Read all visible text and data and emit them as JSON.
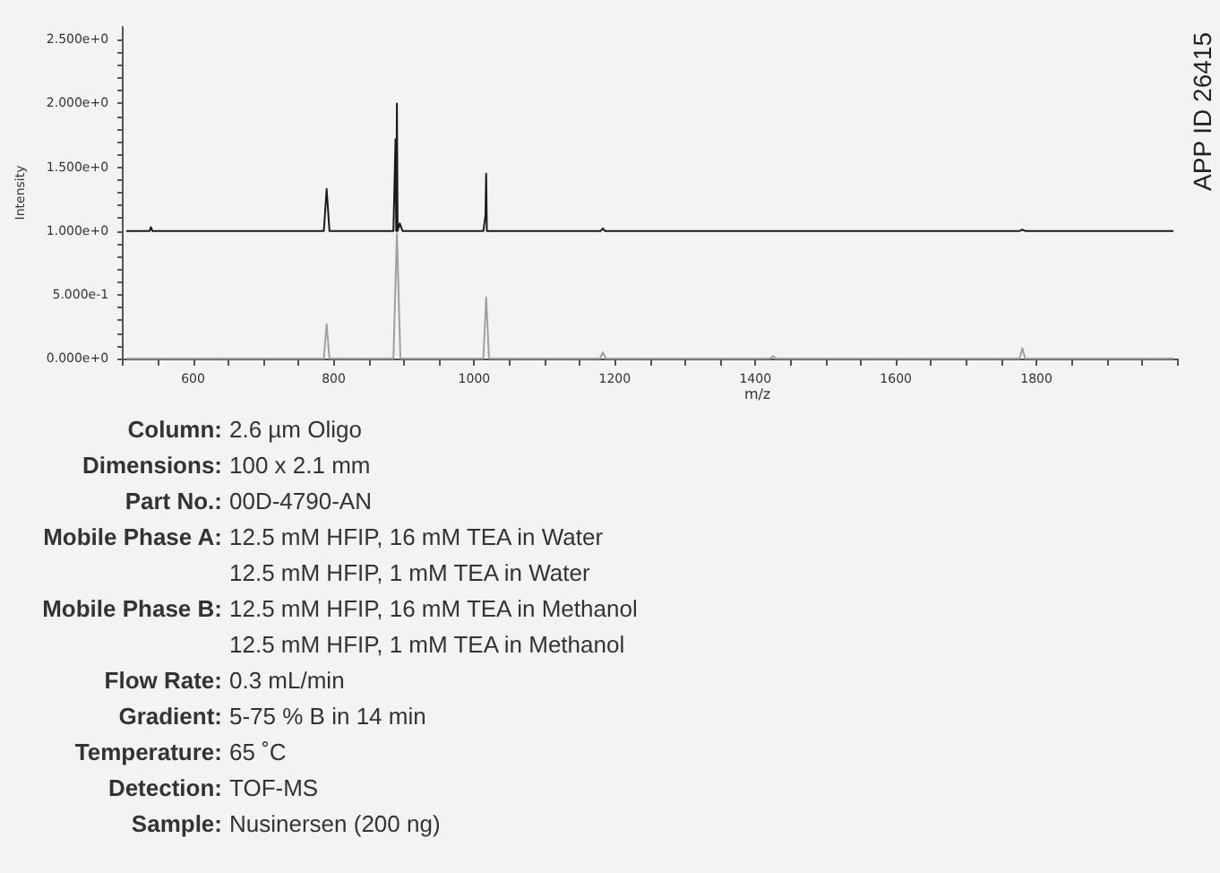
{
  "chart_data": {
    "type": "line",
    "xlabel": "m/z",
    "ylabel": "Intensity",
    "marker": "none",
    "grid": false,
    "xlim": [
      500,
      2000
    ],
    "ylim": [
      0,
      2.6
    ],
    "xticks": [
      {
        "value": 500,
        "label": null
      },
      {
        "value": 550,
        "label": null
      },
      600,
      {
        "value": 650,
        "label": null
      },
      {
        "value": 700,
        "label": null
      },
      {
        "value": 750,
        "label": null
      },
      800,
      {
        "value": 850,
        "label": null
      },
      {
        "value": 900,
        "label": null
      },
      {
        "value": 950,
        "label": null
      },
      1000,
      {
        "value": 1050,
        "label": null
      },
      {
        "value": 1100,
        "label": null
      },
      {
        "value": 1150,
        "label": null
      },
      1200,
      {
        "value": 1250,
        "label": null
      },
      {
        "value": 1300,
        "label": null
      },
      {
        "value": 1350,
        "label": null
      },
      1400,
      {
        "value": 1450,
        "label": null
      },
      {
        "value": 1500,
        "label": null
      },
      {
        "value": 1550,
        "label": null
      },
      1600,
      {
        "value": 1650,
        "label": null
      },
      {
        "value": 1700,
        "label": null
      },
      {
        "value": 1750,
        "label": null
      },
      1800,
      {
        "value": 1850,
        "label": null
      },
      {
        "value": 1900,
        "label": null
      },
      {
        "value": 1950,
        "label": null
      },
      {
        "value": 2000,
        "label": null
      }
    ],
    "yticks": [
      {
        "value": 0,
        "label": "0.000e+0"
      },
      {
        "value": 0.1,
        "label": null
      },
      {
        "value": 0.2,
        "label": null
      },
      {
        "value": 0.3,
        "label": null
      },
      {
        "value": 0.4,
        "label": null
      },
      {
        "value": 0.5,
        "label": "5.000e-1"
      },
      {
        "value": 0.6,
        "label": null
      },
      {
        "value": 0.7,
        "label": null
      },
      {
        "value": 0.8,
        "label": null
      },
      {
        "value": 0.9,
        "label": null
      },
      {
        "value": 1.0,
        "label": "1.000e+0"
      },
      {
        "value": 1.1,
        "label": null
      },
      {
        "value": 1.2,
        "label": null
      },
      {
        "value": 1.3,
        "label": null
      },
      {
        "value": 1.4,
        "label": null
      },
      {
        "value": 1.5,
        "label": "1.500e+0"
      },
      {
        "value": 1.6,
        "label": null
      },
      {
        "value": 1.7,
        "label": null
      },
      {
        "value": 1.8,
        "label": null
      },
      {
        "value": 1.9,
        "label": null
      },
      {
        "value": 2.0,
        "label": "2.000e+0"
      },
      {
        "value": 2.1,
        "label": null
      },
      {
        "value": 2.2,
        "label": null
      },
      {
        "value": 2.3,
        "label": null
      },
      {
        "value": 2.4,
        "label": null
      },
      {
        "value": 2.5,
        "label": "2.500e+0"
      }
    ],
    "series": [
      {
        "color": "#1a1a1a",
        "x": [
          505,
          538,
          540,
          542,
          786,
          790,
          794,
          885,
          888,
          889,
          890,
          891,
          894,
          898,
          1013,
          1016,
          1017,
          1018,
          1021,
          1180,
          1183,
          1186,
          1776,
          1780,
          1784,
          1995
        ],
        "values": [
          1,
          1,
          1.03,
          1,
          1,
          1.33,
          1,
          1,
          1.72,
          1,
          2.0,
          1,
          1.06,
          1,
          1,
          1.12,
          1.45,
          1,
          1,
          1,
          1.02,
          1,
          1,
          1.01,
          1,
          1
        ]
      },
      {
        "color": "#a0a0a0",
        "x": [
          505,
          786,
          790,
          794,
          885,
          890,
          895,
          1013,
          1017,
          1021,
          1179,
          1183,
          1187,
          1421,
          1425,
          1429,
          1776,
          1780,
          1784,
          1995
        ],
        "values": [
          0,
          0,
          0.27,
          0,
          0,
          0.98,
          0,
          0,
          0.48,
          0,
          0,
          0.05,
          0,
          0,
          0.02,
          0,
          0,
          0.08,
          0,
          0
        ]
      }
    ],
    "annotations": [
      "APP ID 26415",
      "Column: 2.6 µm Oligo",
      "Dimensions: 100 x 2.1 mm",
      "Part No.: 00D-4790-AN",
      "Mobile Phase A: 12.5 mM HFIP, 16 mM TEA in Water",
      "12.5 mM HFIP, 1 mM TEA in Water",
      "Mobile Phase B: 12.5 mM HFIP, 16 mM TEA in Methanol",
      "12.5 mM HFIP, 1 mM TEA in Methanol",
      "Flow Rate: 0.3 mL/min",
      "Gradient: 5-75 % B in 14 min",
      "Temperature: 65 ˚C",
      "Detection: TOF-MS",
      "Sample: Nusinersen (200 ng)"
    ]
  }
}
